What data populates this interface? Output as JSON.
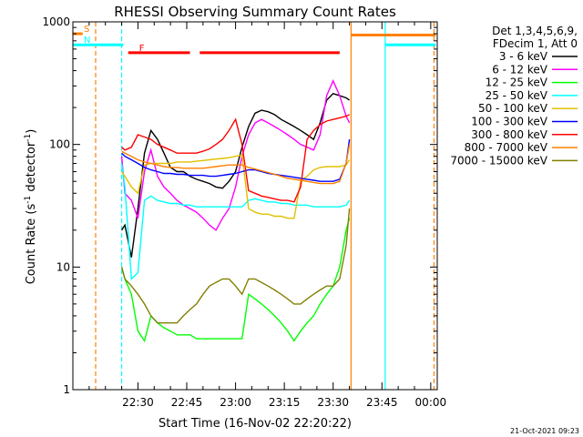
{
  "chart_data": {
    "type": "line",
    "title": "RHESSI Observing Summary Count Rates",
    "xlabel": "Start Time (16-Nov-02 22:20:22)",
    "ylabel_main": "Count Rate (s",
    "ylabel_sup1": "-1",
    "ylabel_mid": " detector",
    "ylabel_sup2": "-1",
    "ylabel_end": ")",
    "y_scale": "log",
    "ylim": [
      1,
      1000
    ],
    "y_ticks": [
      {
        "v": 1,
        "label": "1"
      },
      {
        "v": 10,
        "label": "10"
      },
      {
        "v": 100,
        "label": "100"
      },
      {
        "v": 1000,
        "label": "1000"
      }
    ],
    "x_range_minutes": [
      -10,
      102
    ],
    "x_ticks": [
      {
        "t": 10,
        "label": "22:30"
      },
      {
        "t": 25,
        "label": "22:45"
      },
      {
        "t": 40,
        "label": "23:00"
      },
      {
        "t": 55,
        "label": "23:15"
      },
      {
        "t": 70,
        "label": "23:30"
      },
      {
        "t": 85,
        "label": "23:45"
      },
      {
        "t": 100,
        "label": "00:00"
      }
    ],
    "legend_header": [
      "Det 1,3,4,5,6,9,",
      "FDecim 1, Att 0"
    ],
    "series": [
      {
        "name": "3 - 6 keV",
        "color": "#000000",
        "x": [
          5,
          6,
          8,
          10,
          12,
          14,
          16,
          18,
          20,
          22,
          24,
          26,
          28,
          30,
          32,
          34,
          36,
          38,
          40,
          42,
          44,
          46,
          48,
          50,
          52,
          54,
          56,
          58,
          60,
          62,
          64,
          66,
          68,
          70,
          72,
          74,
          75
        ],
        "y": [
          20,
          22,
          12,
          30,
          85,
          130,
          110,
          85,
          65,
          60,
          60,
          55,
          52,
          50,
          48,
          45,
          44,
          50,
          60,
          95,
          140,
          180,
          190,
          185,
          175,
          160,
          150,
          140,
          130,
          120,
          110,
          150,
          230,
          260,
          250,
          240,
          230
        ]
      },
      {
        "name": "6 - 12 keV",
        "color": "#ff00ff",
        "x": [
          5,
          6,
          8,
          10,
          12,
          14,
          16,
          18,
          20,
          22,
          24,
          26,
          28,
          30,
          32,
          34,
          36,
          38,
          40,
          42,
          44,
          46,
          48,
          50,
          52,
          54,
          56,
          58,
          60,
          62,
          64,
          66,
          68,
          70,
          72,
          74,
          75
        ],
        "y": [
          80,
          40,
          35,
          25,
          60,
          90,
          55,
          45,
          40,
          35,
          32,
          30,
          28,
          25,
          22,
          20,
          25,
          30,
          45,
          80,
          120,
          150,
          160,
          150,
          140,
          130,
          120,
          110,
          100,
          95,
          90,
          120,
          250,
          330,
          250,
          170,
          150
        ]
      },
      {
        "name": "12 - 25 keV",
        "color": "#00ff00",
        "x": [
          5,
          6,
          8,
          10,
          12,
          14,
          16,
          18,
          20,
          22,
          24,
          26,
          28,
          30,
          32,
          34,
          36,
          38,
          40,
          42,
          44,
          46,
          48,
          50,
          52,
          54,
          56,
          58,
          60,
          62,
          64,
          66,
          68,
          70,
          72,
          74,
          75
        ],
        "y": [
          10,
          8,
          6,
          3,
          2.5,
          4,
          3.5,
          3.2,
          3,
          2.8,
          2.8,
          2.8,
          2.6,
          2.6,
          2.6,
          2.6,
          2.6,
          2.6,
          2.6,
          2.6,
          6,
          5.5,
          5,
          4.5,
          4,
          3.5,
          3,
          2.5,
          3,
          3.5,
          4,
          5,
          6,
          7,
          10,
          20,
          25
        ]
      },
      {
        "name": "25 - 50 keV",
        "color": "#00ffff",
        "x": [
          5,
          6,
          8,
          10,
          12,
          14,
          16,
          18,
          20,
          22,
          24,
          26,
          28,
          30,
          32,
          34,
          36,
          38,
          40,
          42,
          44,
          46,
          48,
          50,
          52,
          54,
          56,
          58,
          60,
          62,
          64,
          66,
          68,
          70,
          72,
          74,
          75
        ],
        "y": [
          70,
          45,
          8,
          9,
          35,
          38,
          35,
          34,
          33,
          33,
          32,
          32,
          31,
          31,
          31,
          31,
          31,
          31,
          31,
          31,
          35,
          36,
          35,
          34,
          34,
          33,
          33,
          32,
          32,
          32,
          31,
          31,
          31,
          31,
          31,
          32,
          35
        ]
      },
      {
        "name": "50 - 100 keV",
        "color": "#e0c000",
        "x": [
          5,
          6,
          8,
          10,
          12,
          14,
          16,
          18,
          20,
          22,
          24,
          26,
          28,
          30,
          32,
          34,
          36,
          38,
          40,
          42,
          44,
          46,
          48,
          50,
          52,
          54,
          56,
          58,
          60,
          62,
          64,
          66,
          68,
          70,
          72,
          74,
          75
        ],
        "y": [
          60,
          55,
          45,
          40,
          68,
          70,
          70,
          70,
          70,
          72,
          72,
          72,
          73,
          74,
          75,
          76,
          77,
          78,
          80,
          82,
          30,
          28,
          27,
          27,
          26,
          26,
          25,
          25,
          50,
          55,
          62,
          65,
          66,
          66,
          66,
          68,
          75
        ]
      },
      {
        "name": "100 - 300 keV",
        "color": "#0000ff",
        "x": [
          5,
          6,
          8,
          10,
          12,
          14,
          16,
          18,
          20,
          22,
          24,
          26,
          28,
          30,
          32,
          34,
          36,
          38,
          40,
          42,
          44,
          46,
          48,
          50,
          52,
          54,
          56,
          58,
          60,
          62,
          64,
          66,
          68,
          70,
          72,
          74,
          75
        ],
        "y": [
          85,
          80,
          75,
          70,
          65,
          62,
          60,
          58,
          58,
          57,
          57,
          56,
          56,
          56,
          55,
          55,
          56,
          57,
          58,
          60,
          62,
          62,
          60,
          58,
          57,
          56,
          55,
          54,
          53,
          52,
          51,
          50,
          50,
          50,
          52,
          70,
          110
        ]
      },
      {
        "name": "300 - 800 keV",
        "color": "#ff0000",
        "x": [
          5,
          6,
          8,
          10,
          12,
          14,
          16,
          18,
          20,
          22,
          24,
          26,
          28,
          30,
          32,
          34,
          36,
          38,
          40,
          42,
          44,
          46,
          48,
          50,
          52,
          54,
          56,
          58,
          60,
          62,
          64,
          66,
          68,
          70,
          72,
          74,
          75
        ],
        "y": [
          95,
          90,
          95,
          120,
          115,
          110,
          100,
          95,
          90,
          85,
          85,
          85,
          85,
          88,
          92,
          100,
          110,
          130,
          160,
          100,
          42,
          40,
          38,
          37,
          36,
          35,
          35,
          34,
          45,
          110,
          130,
          145,
          155,
          160,
          165,
          170,
          175
        ]
      },
      {
        "name": "800 - 7000 keV",
        "color": "#ff8000",
        "x": [
          5,
          6,
          8,
          10,
          12,
          14,
          16,
          18,
          20,
          22,
          24,
          26,
          28,
          30,
          32,
          34,
          36,
          38,
          40,
          42,
          44,
          46,
          48,
          50,
          52,
          54,
          56,
          58,
          60,
          62,
          64,
          66,
          68,
          70,
          72,
          74,
          75
        ],
        "y": [
          88,
          85,
          80,
          75,
          72,
          70,
          68,
          66,
          65,
          65,
          64,
          64,
          64,
          64,
          65,
          66,
          67,
          68,
          68,
          68,
          65,
          63,
          61,
          59,
          57,
          55,
          53,
          52,
          51,
          50,
          49,
          48,
          48,
          48,
          50,
          70,
          100
        ]
      },
      {
        "name": "7000 - 15000 keV",
        "color": "#808000",
        "x": [
          5,
          6,
          8,
          10,
          12,
          14,
          16,
          18,
          20,
          22,
          24,
          26,
          28,
          30,
          32,
          34,
          36,
          38,
          40,
          42,
          44,
          46,
          48,
          50,
          52,
          54,
          56,
          58,
          60,
          62,
          64,
          66,
          68,
          70,
          72,
          74,
          75
        ],
        "y": [
          10,
          8,
          7,
          6,
          5,
          4,
          3.5,
          3.5,
          3.5,
          3.5,
          4,
          4.5,
          5,
          6,
          7,
          7.5,
          8,
          8,
          7,
          6,
          8,
          8,
          7.5,
          7,
          6.5,
          6,
          5.5,
          5,
          5,
          5.5,
          6,
          6.5,
          7,
          7,
          8,
          15,
          30
        ]
      }
    ],
    "state_bars": [
      {
        "label": "S",
        "color": "#ff8000",
        "x0": -10,
        "x1": -7,
        "level": 800
      },
      {
        "label": "N",
        "color": "#00ffff",
        "x0": -10,
        "x1": 5.5,
        "level": 650
      },
      {
        "label": "",
        "color": "#ff8000",
        "x0": 75.5,
        "x1": 101.5,
        "level": 780
      },
      {
        "label": "",
        "color": "#00ffff",
        "x0": 86,
        "x1": 101.5,
        "level": 650
      },
      {
        "label": "F",
        "color": "#ff0000",
        "x0": 7,
        "x1": 26,
        "level": 560
      },
      {
        "label": "",
        "color": "#ff0000",
        "x0": 29,
        "x1": 72,
        "level": 560
      }
    ],
    "vlines": [
      {
        "t": -3,
        "color": "#ff8000",
        "dash": true
      },
      {
        "t": 5,
        "color": "#00ffff",
        "dash": true
      },
      {
        "t": 75.5,
        "color": "#ff8000",
        "dash": false
      },
      {
        "t": 86,
        "color": "#00ffff",
        "dash": false
      },
      {
        "t": 101,
        "color": "#ff8000",
        "dash": true
      }
    ],
    "footer_date": "21-Oct-2021 09:23",
    "grid": false,
    "legend_position": "right"
  }
}
